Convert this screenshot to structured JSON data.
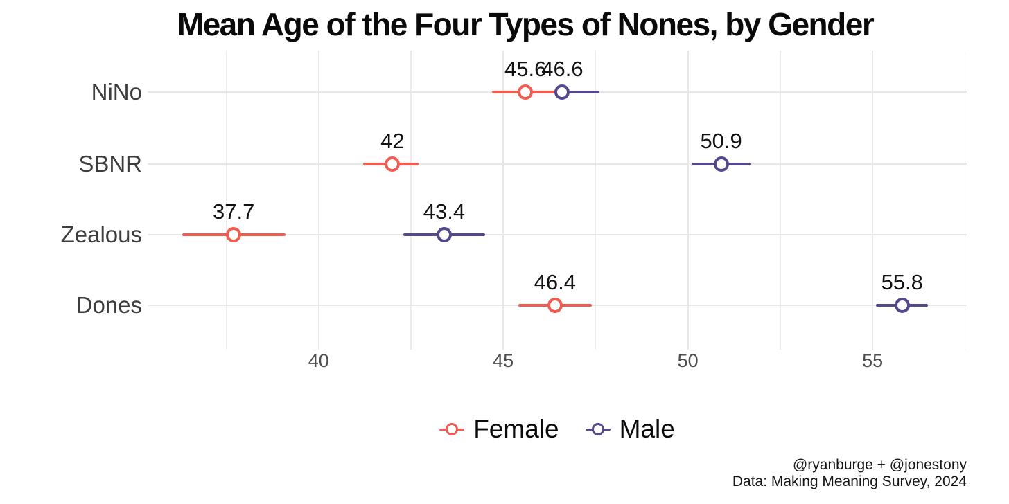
{
  "title": "Mean Age of the Four Types of Nones, by Gender",
  "caption": {
    "line1": "@ryanburge + @jonestony",
    "line2": "Data: Making Meaning Survey, 2024"
  },
  "colors": {
    "female": "#F15B50",
    "male": "#54498E",
    "gridline": "#e8e8e8"
  },
  "chart_data": {
    "type": "scatter",
    "subtype": "dot-plot-with-error-bars",
    "title": "Mean Age of the Four Types of Nones, by Gender",
    "categories": [
      "NiNo",
      "SBNR",
      "Zealous",
      "Dones"
    ],
    "series": [
      {
        "name": "Female",
        "color": "#F15B50",
        "values": [
          45.6,
          42,
          37.7,
          46.4
        ],
        "labels": [
          "45.6",
          "42",
          "37.7",
          "46.4"
        ],
        "ci_low": [
          44.7,
          41.2,
          36.3,
          45.4
        ],
        "ci_high": [
          46.4,
          42.7,
          39.1,
          47.4
        ]
      },
      {
        "name": "Male",
        "color": "#54498E",
        "values": [
          46.6,
          50.9,
          43.4,
          55.8
        ],
        "labels": [
          "46.6",
          "50.9",
          "43.4",
          "55.8"
        ],
        "ci_low": [
          45.6,
          50.1,
          42.3,
          55.1
        ],
        "ci_high": [
          47.6,
          51.7,
          44.5,
          56.5
        ]
      }
    ],
    "xlabel": "",
    "ylabel": "",
    "x_ticks": [
      40,
      45,
      50,
      55
    ],
    "x_minor_ticks": [
      37.5,
      42.5,
      47.5,
      52.5,
      57.5
    ],
    "xlim": [
      35.37,
      57.55
    ],
    "grid": true,
    "legend_position": "bottom"
  }
}
